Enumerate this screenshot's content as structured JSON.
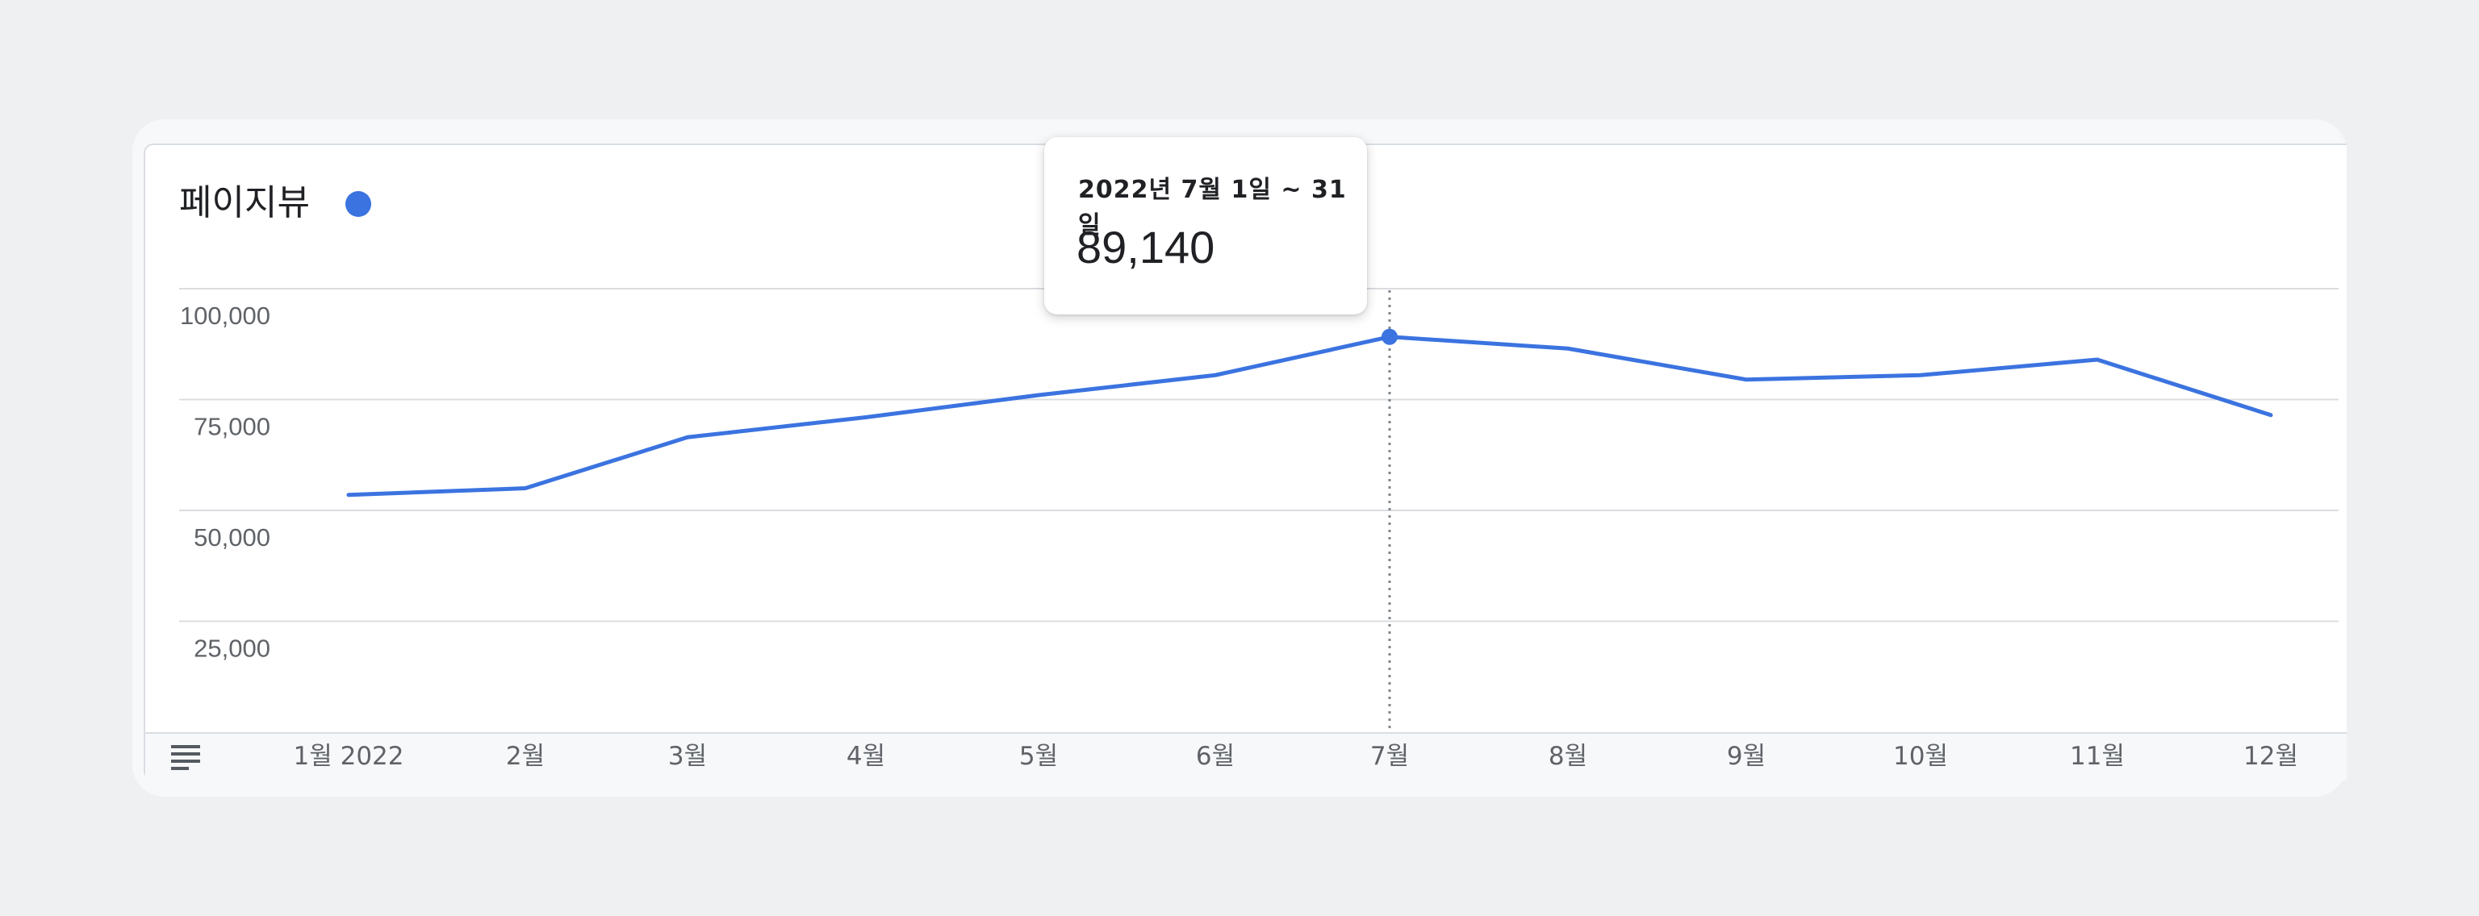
{
  "chart_data": {
    "type": "line",
    "title": "페이지뷰",
    "categories": [
      "1월 2022",
      "2월",
      "3월",
      "4월",
      "5월",
      "6월",
      "7월",
      "8월",
      "9월",
      "10월",
      "11월",
      "12월"
    ],
    "series": [
      {
        "values": [
          53500,
          55000,
          66500,
          71000,
          76000,
          80500,
          89140,
          86500,
          79500,
          80500,
          84000,
          71500
        ]
      }
    ],
    "yticks": [
      "100,000",
      "75,000",
      "50,000",
      "25,000"
    ],
    "ylim": [
      0,
      100000
    ],
    "grid": true,
    "series_color": "#3b73e0",
    "tooltip": {
      "date": "2022년 7월 1일 ~ 31일",
      "value": "89,140",
      "index": 6
    }
  }
}
